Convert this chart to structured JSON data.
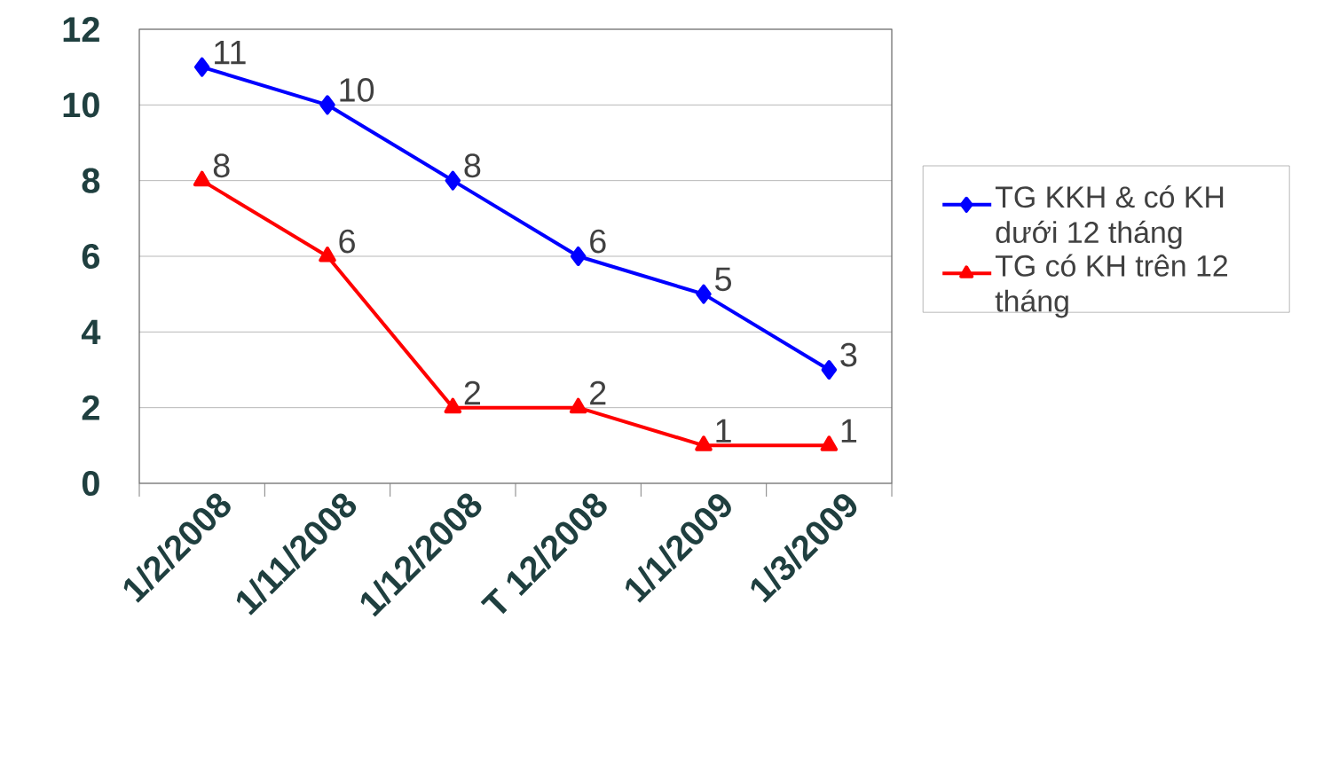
{
  "chart_data": {
    "type": "line",
    "categories": [
      "1/2/2008",
      "1/11/2008",
      "1/12/2008",
      "T 12/2008",
      "1/1/2009",
      "1/3/2009"
    ],
    "series": [
      {
        "name": "TG KKH & có KH dưới 12 tháng",
        "color": "#0000ff",
        "marker": "diamond",
        "values": [
          11,
          10,
          8,
          6,
          5,
          3
        ]
      },
      {
        "name": "TG có KH trên 12 tháng",
        "color": "#ff0000",
        "marker": "triangle",
        "values": [
          8,
          6,
          2,
          2,
          1,
          1
        ]
      }
    ],
    "ylim": [
      0,
      12
    ],
    "yticks": [
      0,
      2,
      4,
      6,
      8,
      10,
      12
    ],
    "grid": "y",
    "legend": "right",
    "data_labels": true,
    "line_style": "solid"
  }
}
